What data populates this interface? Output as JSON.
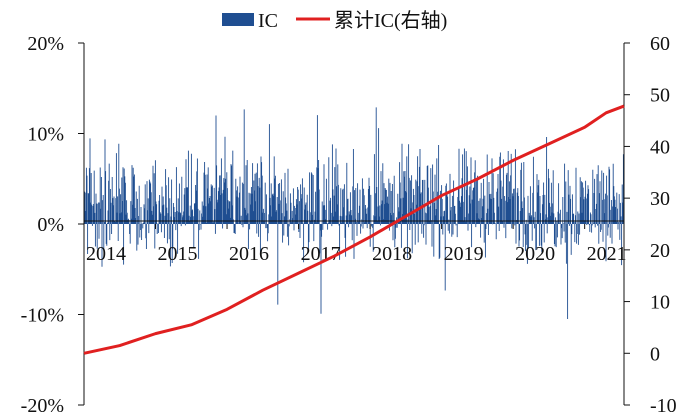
{
  "chart_data": {
    "type": "bar+line",
    "title": "",
    "xlabel": "",
    "ylabel_left": "",
    "ylabel_right": "",
    "x_range": [
      2014.0,
      2021.55
    ],
    "y_left_range": [
      -20,
      20
    ],
    "y_left_ticks": [
      -20,
      -10,
      0,
      10,
      20
    ],
    "y_left_tick_labels": [
      "-20%",
      "-10%",
      "0%",
      "10%",
      "20%"
    ],
    "y_right_range": [
      -10,
      60
    ],
    "y_right_ticks": [
      -10,
      0,
      10,
      20,
      30,
      40,
      50,
      60
    ],
    "y_right_tick_labels": [
      "-10",
      "0",
      "10",
      "20",
      "30",
      "40",
      "50",
      "60"
    ],
    "x_tick_values": [
      2014,
      2015,
      2016,
      2017,
      2018,
      2019,
      2020,
      2021
    ],
    "x_tick_labels": [
      "2014",
      "2015",
      "2016",
      "2017",
      "2018",
      "2019",
      "2020",
      "2021"
    ],
    "grid": false,
    "legend_position": "top-center",
    "series": [
      {
        "name": "IC",
        "type": "bar",
        "axis": "left",
        "color": "#1f4e91",
        "frequency": "daily",
        "summary": {
          "typical_range": [
            -3,
            8
          ],
          "max": 14.5,
          "min": -10.5
        }
      },
      {
        "name": "累计IC(右轴)",
        "type": "line",
        "axis": "right",
        "color": "#e02020",
        "x": [
          2014.0,
          2014.5,
          2015.0,
          2015.5,
          2016.0,
          2016.5,
          2017.0,
          2017.5,
          2018.0,
          2018.5,
          2019.0,
          2019.5,
          2020.0,
          2020.5,
          2021.0,
          2021.3,
          2021.55
        ],
        "y": [
          0.0,
          1.5,
          3.8,
          5.5,
          8.5,
          12.2,
          15.5,
          18.8,
          22.5,
          26.5,
          30.5,
          33.7,
          37.3,
          40.5,
          43.7,
          46.5,
          47.8
        ]
      }
    ]
  }
}
